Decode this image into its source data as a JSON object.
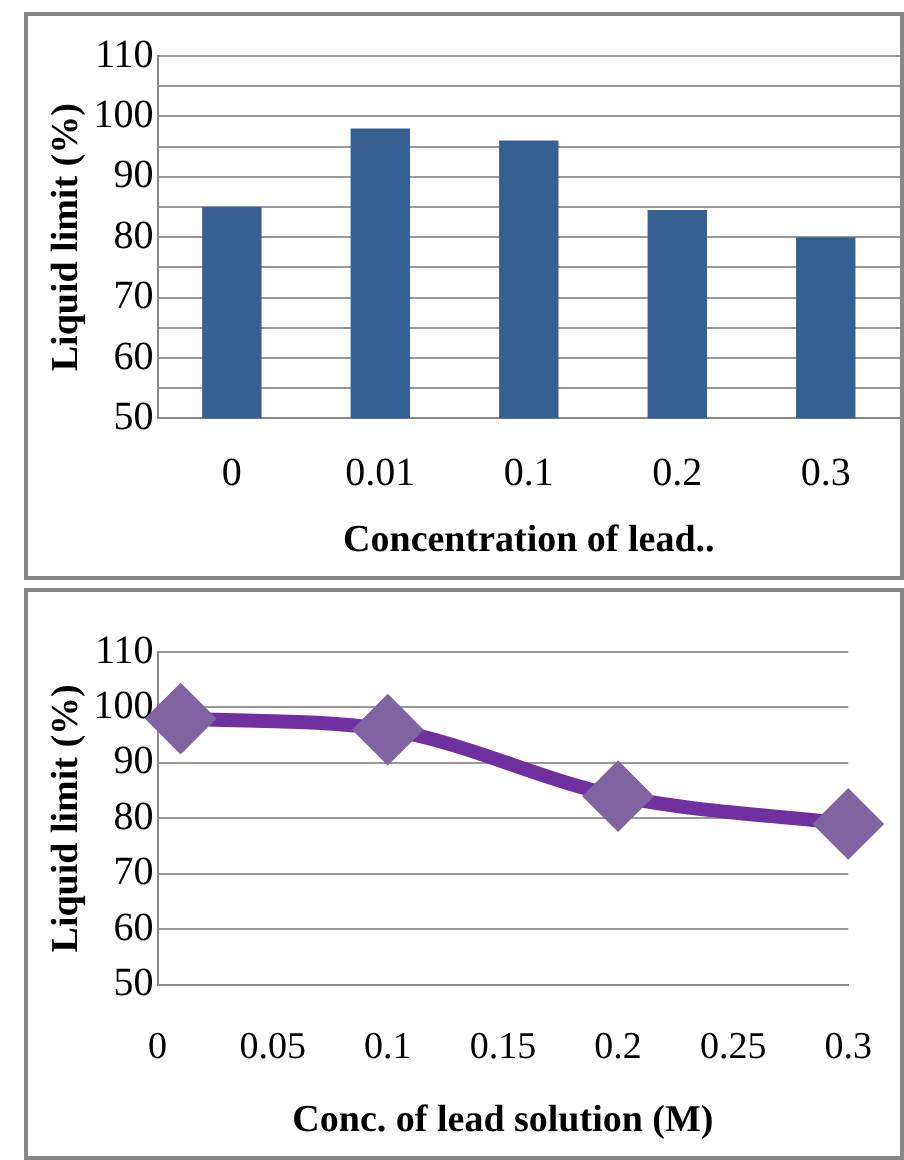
{
  "chart_data": [
    {
      "type": "bar",
      "categories": [
        "0",
        "0.01",
        "0.1",
        "0.2",
        "0.3"
      ],
      "values": [
        85,
        98,
        96,
        84.5,
        80
      ],
      "color": "#366092",
      "xlabel": "Concentration of lead..",
      "ylabel": "Liquid limit (%)",
      "ylim": [
        50,
        110
      ],
      "yticks": [
        50,
        {
          "value": 55,
          "label": null
        },
        60,
        {
          "value": 65,
          "label": null
        },
        70,
        {
          "value": 75,
          "label": null
        },
        80,
        {
          "value": 85,
          "label": null
        },
        90,
        {
          "value": 95,
          "label": null
        },
        100,
        {
          "value": 105,
          "label": null
        },
        110
      ],
      "grid": "y"
    },
    {
      "type": "line",
      "x": [
        0.01,
        0.1,
        0.2,
        0.3
      ],
      "values": [
        98,
        96,
        84,
        79
      ],
      "color": "#7030a0",
      "marker": "diamond",
      "xlabel": "Conc. of lead solution (M)",
      "ylabel": "Liquid limit (%)",
      "xlim": [
        0,
        0.3
      ],
      "xticks": [
        0,
        0.05,
        0.1,
        0.15,
        0.2,
        0.25,
        0.3
      ],
      "ylim": [
        50,
        110
      ],
      "yticks": [
        50,
        60,
        70,
        80,
        90,
        100,
        110
      ],
      "grid": "y"
    }
  ]
}
